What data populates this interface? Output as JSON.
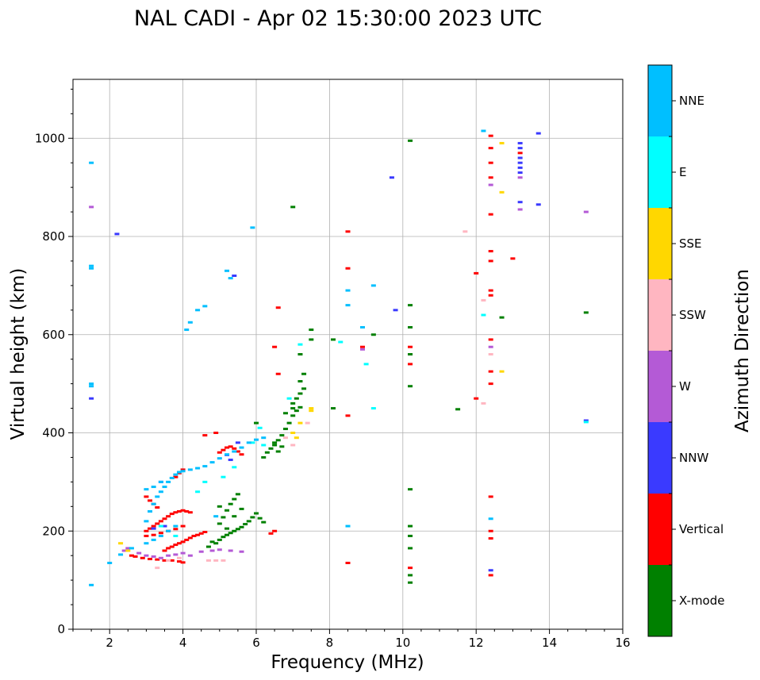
{
  "chart_data": {
    "type": "scatter",
    "title": "NAL CADI - Apr 02 15:30:00 2023 UTC",
    "xlabel": "Frequency (MHz)",
    "ylabel": "Virtual height (km)",
    "xlim": [
      1,
      16
    ],
    "ylim": [
      0,
      1120
    ],
    "xticks": [
      2,
      4,
      6,
      8,
      10,
      12,
      14,
      16
    ],
    "xtick_labels": [
      "2",
      "4",
      "6",
      "8",
      "10",
      "12",
      "14",
      "16"
    ],
    "yticks": [
      0,
      200,
      400,
      600,
      800,
      1000
    ],
    "ytick_labels": [
      "0",
      "200",
      "400",
      "600",
      "800",
      "1000"
    ],
    "grid": true,
    "colorbar": {
      "label": "Azimuth Direction",
      "categories": [
        "X-mode",
        "Vertical",
        "NNW",
        "W",
        "SSW",
        "SSE",
        "E",
        "NNE"
      ],
      "colors": [
        "#008000",
        "#ff0000",
        "#3a3aff",
        "#b45ad6",
        "#ffb6c1",
        "#ffd700",
        "#00ffff",
        "#00bfff"
      ]
    },
    "series": [
      {
        "name": "X-mode",
        "points": [
          [
            4.9,
            175
          ],
          [
            5.0,
            182
          ],
          [
            5.1,
            188
          ],
          [
            5.2,
            192
          ],
          [
            5.3,
            196
          ],
          [
            5.4,
            200
          ],
          [
            5.5,
            204
          ],
          [
            5.6,
            208
          ],
          [
            5.7,
            214
          ],
          [
            5.8,
            220
          ],
          [
            5.9,
            228
          ],
          [
            6.0,
            236
          ],
          [
            6.1,
            226
          ],
          [
            6.2,
            218
          ],
          [
            4.7,
            168
          ],
          [
            4.8,
            178
          ],
          [
            5.0,
            215
          ],
          [
            5.1,
            228
          ],
          [
            5.2,
            242
          ],
          [
            5.3,
            255
          ],
          [
            5.4,
            265
          ],
          [
            5.5,
            275
          ],
          [
            5.2,
            205
          ],
          [
            5.4,
            230
          ],
          [
            5.6,
            245
          ],
          [
            5.0,
            250
          ],
          [
            6.2,
            350
          ],
          [
            6.3,
            360
          ],
          [
            6.4,
            368
          ],
          [
            6.5,
            375
          ],
          [
            6.6,
            385
          ],
          [
            6.7,
            395
          ],
          [
            6.8,
            408
          ],
          [
            6.9,
            420
          ],
          [
            7.0,
            435
          ],
          [
            7.1,
            445
          ],
          [
            7.2,
            452
          ],
          [
            7.0,
            460
          ],
          [
            7.1,
            470
          ],
          [
            7.2,
            480
          ],
          [
            7.3,
            490
          ],
          [
            7.2,
            505
          ],
          [
            6.6,
            362
          ],
          [
            6.7,
            372
          ],
          [
            6.0,
            420
          ],
          [
            6.5,
            380
          ],
          [
            6.8,
            440
          ],
          [
            7.0,
            450
          ],
          [
            7.5,
            610
          ],
          [
            7.2,
            560
          ],
          [
            7.3,
            520
          ],
          [
            7.5,
            590
          ],
          [
            10.2,
            995
          ],
          [
            10.2,
            660
          ],
          [
            10.2,
            615
          ],
          [
            10.2,
            560
          ],
          [
            10.2,
            495
          ],
          [
            10.2,
            285
          ],
          [
            10.2,
            210
          ],
          [
            10.2,
            190
          ],
          [
            10.2,
            165
          ],
          [
            10.2,
            110
          ],
          [
            10.2,
            95
          ],
          [
            7.0,
            860
          ],
          [
            8.1,
            590
          ],
          [
            8.1,
            450
          ],
          [
            9.2,
            600
          ],
          [
            11.5,
            448
          ],
          [
            12.7,
            635
          ],
          [
            15.0,
            645
          ]
        ]
      },
      {
        "name": "Vertical",
        "points": [
          [
            3.0,
            200
          ],
          [
            3.1,
            205
          ],
          [
            3.2,
            210
          ],
          [
            3.3,
            215
          ],
          [
            3.4,
            220
          ],
          [
            3.5,
            225
          ],
          [
            3.6,
            230
          ],
          [
            3.7,
            235
          ],
          [
            3.8,
            238
          ],
          [
            3.9,
            240
          ],
          [
            4.0,
            242
          ],
          [
            4.1,
            240
          ],
          [
            4.2,
            238
          ],
          [
            3.0,
            190
          ],
          [
            3.2,
            192
          ],
          [
            3.4,
            196
          ],
          [
            3.6,
            200
          ],
          [
            3.8,
            204
          ],
          [
            4.0,
            210
          ],
          [
            3.5,
            160
          ],
          [
            3.6,
            165
          ],
          [
            3.7,
            168
          ],
          [
            3.8,
            172
          ],
          [
            3.9,
            175
          ],
          [
            4.0,
            178
          ],
          [
            4.1,
            182
          ],
          [
            4.2,
            186
          ],
          [
            4.3,
            190
          ],
          [
            4.4,
            192
          ],
          [
            4.5,
            195
          ],
          [
            4.6,
            198
          ],
          [
            2.6,
            150
          ],
          [
            2.7,
            148
          ],
          [
            2.9,
            145
          ],
          [
            3.1,
            143
          ],
          [
            3.3,
            142
          ],
          [
            3.5,
            140
          ],
          [
            3.7,
            140
          ],
          [
            3.9,
            138
          ],
          [
            4.0,
            136
          ],
          [
            3.0,
            270
          ],
          [
            3.1,
            262
          ],
          [
            3.2,
            255
          ],
          [
            3.3,
            248
          ],
          [
            3.8,
            310
          ],
          [
            3.9,
            318
          ],
          [
            4.0,
            325
          ],
          [
            5.0,
            360
          ],
          [
            5.1,
            365
          ],
          [
            5.2,
            370
          ],
          [
            5.3,
            372
          ],
          [
            5.4,
            368
          ],
          [
            5.5,
            362
          ],
          [
            5.6,
            356
          ],
          [
            4.9,
            400
          ],
          [
            4.6,
            395
          ],
          [
            6.5,
            200
          ],
          [
            6.4,
            195
          ],
          [
            6.6,
            520
          ],
          [
            6.5,
            575
          ],
          [
            6.6,
            655
          ],
          [
            8.5,
            810
          ],
          [
            8.5,
            735
          ],
          [
            8.5,
            435
          ],
          [
            8.5,
            135
          ],
          [
            8.9,
            575
          ],
          [
            10.2,
            575
          ],
          [
            10.2,
            540
          ],
          [
            10.2,
            125
          ],
          [
            12.0,
            470
          ],
          [
            12.4,
            1005
          ],
          [
            12.4,
            980
          ],
          [
            12.4,
            950
          ],
          [
            12.4,
            920
          ],
          [
            12.4,
            845
          ],
          [
            12.4,
            770
          ],
          [
            12.4,
            750
          ],
          [
            12.4,
            690
          ],
          [
            12.4,
            680
          ],
          [
            12.4,
            590
          ],
          [
            12.4,
            525
          ],
          [
            12.4,
            500
          ],
          [
            12.4,
            270
          ],
          [
            12.4,
            200
          ],
          [
            12.4,
            185
          ],
          [
            12.4,
            110
          ],
          [
            12.0,
            725
          ],
          [
            13.0,
            755
          ],
          [
            13.2,
            970
          ]
        ]
      },
      {
        "name": "NNW",
        "points": [
          [
            3.2,
            205
          ],
          [
            3.5,
            210
          ],
          [
            5.2,
            355
          ],
          [
            5.3,
            345
          ],
          [
            5.5,
            380
          ],
          [
            3.4,
            300
          ],
          [
            5.4,
            720
          ],
          [
            9.7,
            920
          ],
          [
            9.8,
            650
          ],
          [
            12.4,
            120
          ],
          [
            13.2,
            990
          ],
          [
            13.2,
            980
          ],
          [
            13.2,
            960
          ],
          [
            13.2,
            950
          ],
          [
            13.2,
            940
          ],
          [
            13.2,
            930
          ],
          [
            13.2,
            870
          ],
          [
            13.7,
            1010
          ],
          [
            13.7,
            865
          ],
          [
            15.0,
            425
          ],
          [
            1.5,
            470
          ],
          [
            2.2,
            805
          ]
        ]
      },
      {
        "name": "W",
        "points": [
          [
            2.4,
            160
          ],
          [
            2.5,
            165
          ],
          [
            2.8,
            155
          ],
          [
            3.0,
            150
          ],
          [
            3.2,
            148
          ],
          [
            3.4,
            145
          ],
          [
            3.6,
            150
          ],
          [
            4.2,
            150
          ],
          [
            4.5,
            158
          ],
          [
            4.8,
            160
          ],
          [
            5.0,
            162
          ],
          [
            5.3,
            160
          ],
          [
            5.6,
            158
          ],
          [
            4.0,
            155
          ],
          [
            3.8,
            152
          ],
          [
            1.5,
            860
          ],
          [
            12.4,
            575
          ],
          [
            12.4,
            905
          ],
          [
            13.2,
            920
          ],
          [
            13.2,
            855
          ],
          [
            15.0,
            850
          ],
          [
            8.9,
            570
          ]
        ]
      },
      {
        "name": "SSW",
        "points": [
          [
            3.3,
            125
          ],
          [
            3.6,
            140
          ],
          [
            3.9,
            145
          ],
          [
            4.7,
            140
          ],
          [
            4.9,
            140
          ],
          [
            5.1,
            140
          ],
          [
            6.8,
            390
          ],
          [
            7.0,
            375
          ],
          [
            7.4,
            420
          ],
          [
            11.7,
            810
          ],
          [
            12.2,
            670
          ],
          [
            12.2,
            460
          ],
          [
            12.4,
            560
          ]
        ]
      },
      {
        "name": "SSE",
        "points": [
          [
            2.3,
            175
          ],
          [
            2.5,
            160
          ],
          [
            7.0,
            400
          ],
          [
            7.1,
            390
          ],
          [
            7.2,
            420
          ],
          [
            7.5,
            450
          ],
          [
            7.5,
            445
          ],
          [
            12.7,
            990
          ],
          [
            12.7,
            890
          ],
          [
            12.7,
            525
          ]
        ]
      },
      {
        "name": "E",
        "points": [
          [
            3.4,
            210
          ],
          [
            3.8,
            190
          ],
          [
            4.4,
            280
          ],
          [
            4.6,
            300
          ],
          [
            5.1,
            310
          ],
          [
            5.4,
            330
          ],
          [
            5.9,
            380
          ],
          [
            6.1,
            410
          ],
          [
            6.9,
            470
          ],
          [
            7.2,
            580
          ],
          [
            8.3,
            585
          ],
          [
            9.0,
            540
          ],
          [
            9.2,
            450
          ],
          [
            12.2,
            640
          ],
          [
            15.0,
            422
          ],
          [
            6.2,
            375
          ]
        ]
      },
      {
        "name": "NNE",
        "points": [
          [
            1.5,
            950
          ],
          [
            1.5,
            740
          ],
          [
            1.5,
            735
          ],
          [
            1.5,
            500
          ],
          [
            1.5,
            495
          ],
          [
            1.5,
            90
          ],
          [
            2.0,
            135
          ],
          [
            2.3,
            152
          ],
          [
            2.6,
            165
          ],
          [
            3.0,
            175
          ],
          [
            3.2,
            182
          ],
          [
            3.4,
            190
          ],
          [
            3.6,
            200
          ],
          [
            3.8,
            210
          ],
          [
            3.0,
            220
          ],
          [
            3.1,
            240
          ],
          [
            3.2,
            255
          ],
          [
            3.3,
            270
          ],
          [
            3.4,
            280
          ],
          [
            3.5,
            290
          ],
          [
            3.6,
            300
          ],
          [
            3.7,
            308
          ],
          [
            3.8,
            315
          ],
          [
            3.9,
            320
          ],
          [
            4.0,
            322
          ],
          [
            4.2,
            325
          ],
          [
            4.4,
            328
          ],
          [
            4.6,
            332
          ],
          [
            4.8,
            340
          ],
          [
            5.0,
            348
          ],
          [
            5.2,
            356
          ],
          [
            5.4,
            362
          ],
          [
            5.6,
            370
          ],
          [
            5.8,
            380
          ],
          [
            6.0,
            386
          ],
          [
            6.2,
            390
          ],
          [
            3.0,
            285
          ],
          [
            3.2,
            290
          ],
          [
            3.4,
            300
          ],
          [
            4.1,
            610
          ],
          [
            4.2,
            625
          ],
          [
            4.4,
            650
          ],
          [
            4.6,
            658
          ],
          [
            5.2,
            730
          ],
          [
            5.3,
            715
          ],
          [
            5.9,
            818
          ],
          [
            8.5,
            690
          ],
          [
            8.5,
            660
          ],
          [
            8.5,
            210
          ],
          [
            8.9,
            615
          ],
          [
            9.2,
            700
          ],
          [
            12.2,
            1015
          ],
          [
            12.4,
            225
          ],
          [
            4.9,
            230
          ]
        ]
      }
    ]
  }
}
